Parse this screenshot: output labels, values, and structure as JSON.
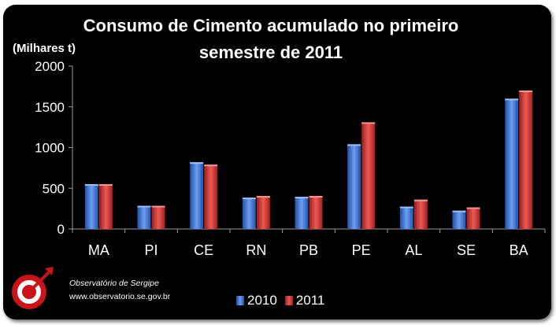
{
  "chart_data": {
    "type": "bar",
    "title_lines": [
      "Consumo de Cimento acumulado no primeiro",
      "semestre de 2011"
    ],
    "ylabel": "(Milhares t)",
    "xlabel": "",
    "categories": [
      "MA",
      "PI",
      "CE",
      "RN",
      "PB",
      "PE",
      "AL",
      "SE",
      "BA"
    ],
    "series": [
      {
        "name": "2010",
        "values": [
          550,
          285,
          820,
          385,
          395,
          1040,
          275,
          225,
          1600
        ]
      },
      {
        "name": "2011",
        "values": [
          550,
          285,
          790,
          405,
          405,
          1310,
          360,
          265,
          1700
        ]
      }
    ],
    "ylim": [
      0,
      2000
    ],
    "yticks": [
      "0",
      "500",
      "1000",
      "1500",
      "2000"
    ],
    "grid": false,
    "legend_placement": "bottom-center",
    "colors": {
      "2010": "#3f78d6",
      "2011": "#d83b36"
    }
  },
  "footer": {
    "org": "Observatório de Sergipe",
    "url": "www.observatorio.se.gov.br"
  },
  "logo_icon": "target-arrow-icon"
}
